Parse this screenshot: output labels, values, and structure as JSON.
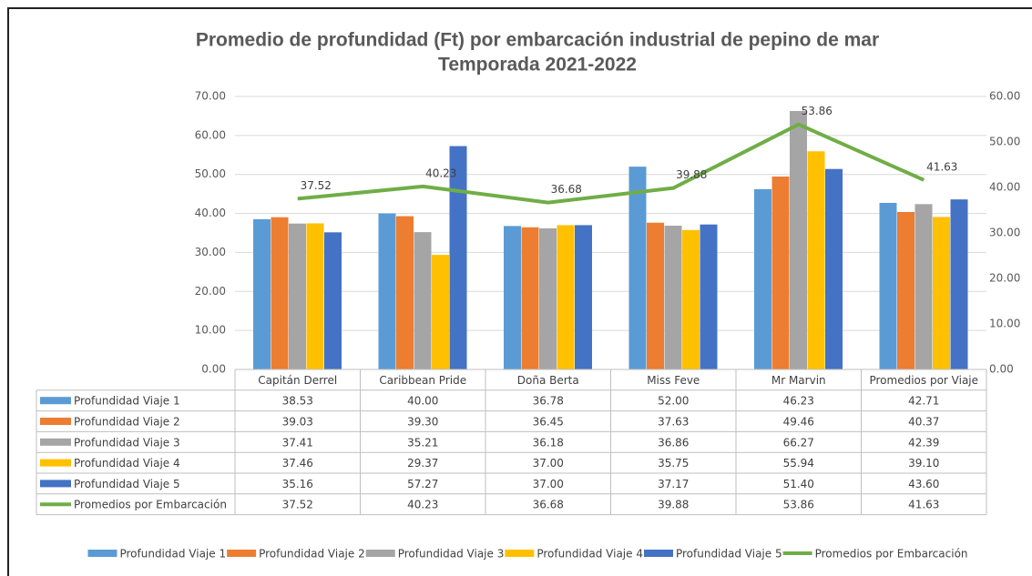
{
  "chart_data": {
    "type": "bar",
    "title": "Promedio de profundidad (Ft) por embarcación industrial de pepino de mar",
    "subtitle": "Temporada 2021-2022",
    "categories": [
      "Capitán Derrel",
      "Caribbean Pride",
      "Doña Berta",
      "Miss Feve",
      "Mr Marvin",
      "Promedios por Viaje"
    ],
    "series": [
      {
        "name": "Profundidad Viaje 1",
        "color": "#5b9bd5",
        "values": [
          38.53,
          40,
          36.78,
          52,
          46.23,
          42.71
        ],
        "value_labels": [
          "38.53",
          "40.00",
          "36.78",
          "52.00",
          "46.23",
          "42.71"
        ]
      },
      {
        "name": "Profundidad Viaje 2",
        "color": "#ed7d31",
        "values": [
          39.03,
          39.3,
          36.45,
          37.63,
          49.46,
          40.37
        ],
        "value_labels": [
          "39.03",
          "39.30",
          "36.45",
          "37.63",
          "49.46",
          "40.37"
        ]
      },
      {
        "name": "Profundidad Viaje 3",
        "color": "#a5a5a5",
        "values": [
          37.41,
          35.21,
          36.18,
          36.86,
          66.27,
          42.39
        ],
        "value_labels": [
          "37.41",
          "35.21",
          "36.18",
          "36.86",
          "66.27",
          "42.39"
        ]
      },
      {
        "name": "Profundidad Viaje 4",
        "color": "#ffc000",
        "values": [
          37.46,
          29.37,
          37,
          35.75,
          55.94,
          39.1
        ],
        "value_labels": [
          "37.46",
          "29.37",
          "37.00",
          "35.75",
          "55.94",
          "39.10"
        ]
      },
      {
        "name": "Profundidad Viaje 5",
        "color": "#4472c4",
        "values": [
          35.16,
          57.27,
          37,
          37.17,
          51.4,
          43.6
        ],
        "value_labels": [
          "35.16",
          "57.27",
          "37.00",
          "37.17",
          "51.40",
          "43.60"
        ]
      },
      {
        "name": "Promedios por Embarcación",
        "color": "#70ad47",
        "type": "line",
        "axis": "y2",
        "values": [
          37.52,
          40.23,
          36.68,
          39.88,
          53.86,
          41.63
        ],
        "value_labels": [
          "37.52",
          "40.23",
          "36.68",
          "39.88",
          "53.86",
          "41.63"
        ]
      }
    ],
    "ylim": [
      0,
      70
    ],
    "yticks": [
      {
        "value": 0,
        "label": "0.00"
      },
      {
        "value": 10,
        "label": "10.00"
      },
      {
        "value": 20,
        "label": "20.00"
      },
      {
        "value": 30,
        "label": "30.00"
      },
      {
        "value": 40,
        "label": "40.00"
      },
      {
        "value": 50,
        "label": "50.00"
      },
      {
        "value": 60,
        "label": "60.00"
      },
      {
        "value": 70,
        "label": "70.00"
      }
    ],
    "y2lim": [
      0,
      60
    ],
    "y2ticks": [
      {
        "value": 0,
        "label": "0.00"
      },
      {
        "value": 10,
        "label": "10.00"
      },
      {
        "value": 20,
        "label": "20.00"
      },
      {
        "value": 30,
        "label": "30.00"
      },
      {
        "value": 40,
        "label": "40.00"
      },
      {
        "value": 50,
        "label": "50.00"
      },
      {
        "value": 60,
        "label": "60.00"
      }
    ],
    "grid": true,
    "legend": "bottom"
  }
}
